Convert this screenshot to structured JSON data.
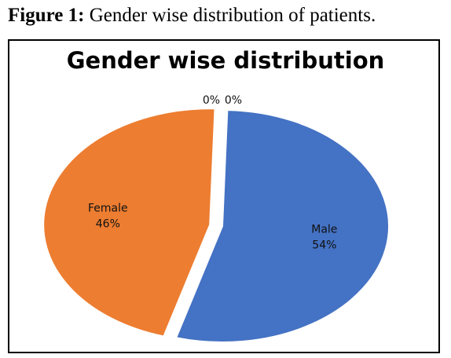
{
  "caption": {
    "label": "Figure 1:",
    "text": "Gender wise distribution of patients."
  },
  "chart_data": {
    "type": "pie",
    "title": "Gender wise distribution",
    "slices": [
      {
        "label": "Male",
        "value": 54,
        "value_label": "54%",
        "color": "#4472C4",
        "exploded": false
      },
      {
        "label": "Female",
        "value": 46,
        "value_label": "46%",
        "color": "#ED7D31",
        "exploded": true
      },
      {
        "label": "",
        "value": 0,
        "value_label": "0%",
        "color": "#A5A5A5",
        "exploded": false
      },
      {
        "label": "",
        "value": 0,
        "value_label": "0%",
        "color": "#FFC000",
        "exploded": false
      }
    ],
    "legend": "none"
  }
}
